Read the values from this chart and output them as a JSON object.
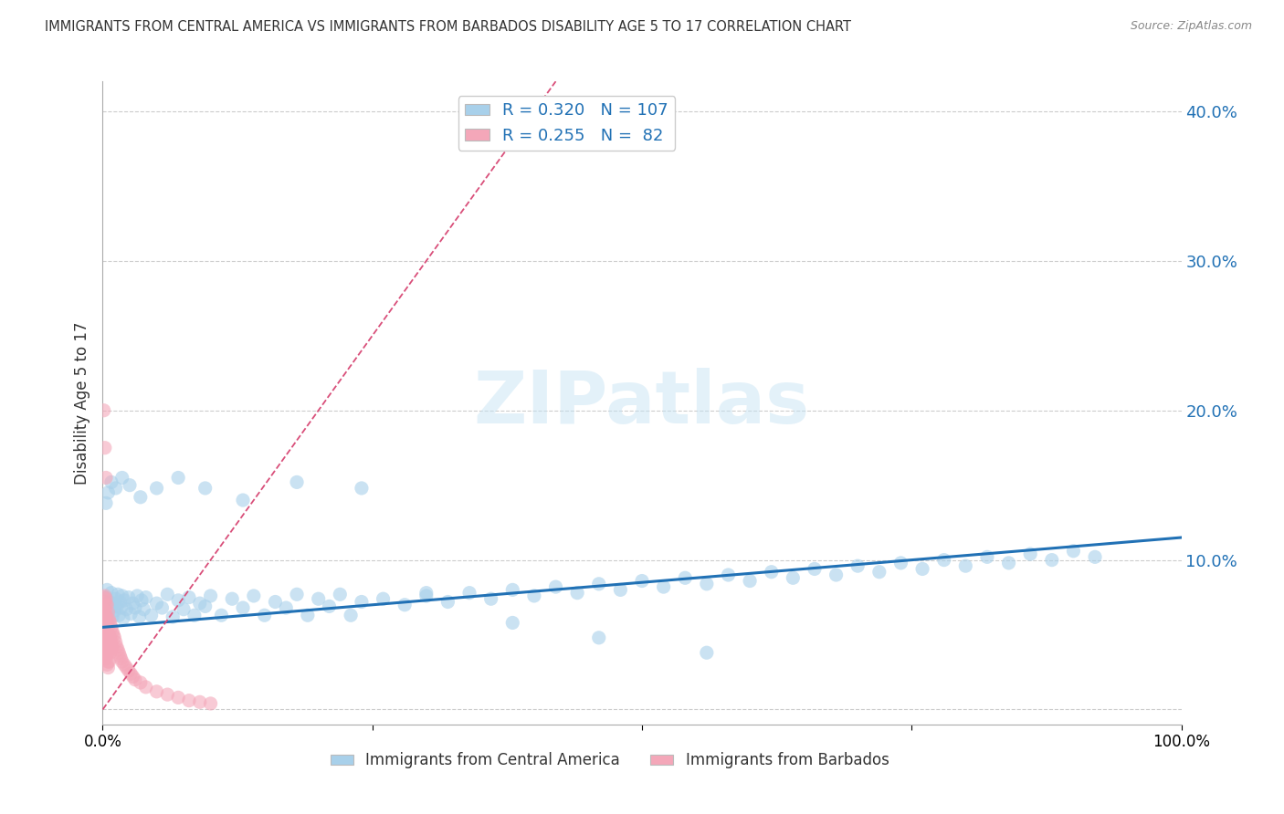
{
  "title": "IMMIGRANTS FROM CENTRAL AMERICA VS IMMIGRANTS FROM BARBADOS DISABILITY AGE 5 TO 17 CORRELATION CHART",
  "source": "Source: ZipAtlas.com",
  "ylabel_label": "Disability Age 5 to 17",
  "xlim": [
    0.0,
    1.0
  ],
  "ylim": [
    -0.01,
    0.42
  ],
  "ytick_vals": [
    0.0,
    0.1,
    0.2,
    0.3,
    0.4
  ],
  "ytick_labels": [
    "",
    "10.0%",
    "20.0%",
    "30.0%",
    "40.0%"
  ],
  "xtick_vals": [
    0.0,
    0.25,
    0.5,
    0.75,
    1.0
  ],
  "xtick_labels": [
    "0.0%",
    "",
    "",
    "",
    "100.0%"
  ],
  "legend_entry1": "R = 0.320   N = 107",
  "legend_entry2": "R = 0.255   N =  82",
  "watermark": "ZIPatlas",
  "blue_color": "#a8d0ea",
  "blue_color_dark": "#2171b5",
  "pink_color": "#f4a7b9",
  "pink_color_dark": "#d94f7a",
  "blue_trend_x": [
    0.0,
    1.0
  ],
  "blue_trend_y": [
    0.055,
    0.115
  ],
  "pink_trend_x": [
    0.0,
    0.42
  ],
  "pink_trend_y": [
    0.0,
    0.42
  ],
  "grid_color": "#cccccc",
  "background_color": "#ffffff",
  "blue_scatter_x": [
    0.001,
    0.002,
    0.003,
    0.004,
    0.005,
    0.006,
    0.007,
    0.008,
    0.009,
    0.01,
    0.011,
    0.012,
    0.013,
    0.014,
    0.015,
    0.016,
    0.017,
    0.018,
    0.019,
    0.02,
    0.022,
    0.024,
    0.026,
    0.028,
    0.03,
    0.032,
    0.034,
    0.036,
    0.038,
    0.04,
    0.045,
    0.05,
    0.055,
    0.06,
    0.065,
    0.07,
    0.075,
    0.08,
    0.085,
    0.09,
    0.095,
    0.1,
    0.11,
    0.12,
    0.13,
    0.14,
    0.15,
    0.16,
    0.17,
    0.18,
    0.19,
    0.2,
    0.21,
    0.22,
    0.23,
    0.24,
    0.26,
    0.28,
    0.3,
    0.32,
    0.34,
    0.36,
    0.38,
    0.4,
    0.42,
    0.44,
    0.46,
    0.48,
    0.5,
    0.52,
    0.54,
    0.56,
    0.58,
    0.6,
    0.62,
    0.64,
    0.66,
    0.68,
    0.7,
    0.72,
    0.74,
    0.76,
    0.78,
    0.8,
    0.82,
    0.84,
    0.86,
    0.88,
    0.9,
    0.92,
    0.003,
    0.005,
    0.008,
    0.012,
    0.018,
    0.025,
    0.035,
    0.05,
    0.07,
    0.095,
    0.13,
    0.18,
    0.24,
    0.3,
    0.38,
    0.46,
    0.56
  ],
  "blue_scatter_y": [
    0.065,
    0.07,
    0.075,
    0.08,
    0.06,
    0.072,
    0.068,
    0.078,
    0.062,
    0.071,
    0.066,
    0.074,
    0.069,
    0.077,
    0.063,
    0.072,
    0.068,
    0.076,
    0.061,
    0.073,
    0.067,
    0.075,
    0.064,
    0.071,
    0.068,
    0.076,
    0.062,
    0.073,
    0.067,
    0.075,
    0.063,
    0.071,
    0.068,
    0.077,
    0.062,
    0.073,
    0.067,
    0.075,
    0.063,
    0.071,
    0.069,
    0.076,
    0.063,
    0.074,
    0.068,
    0.076,
    0.063,
    0.072,
    0.068,
    0.077,
    0.063,
    0.074,
    0.069,
    0.077,
    0.063,
    0.072,
    0.074,
    0.07,
    0.076,
    0.072,
    0.078,
    0.074,
    0.08,
    0.076,
    0.082,
    0.078,
    0.084,
    0.08,
    0.086,
    0.082,
    0.088,
    0.084,
    0.09,
    0.086,
    0.092,
    0.088,
    0.094,
    0.09,
    0.096,
    0.092,
    0.098,
    0.094,
    0.1,
    0.096,
    0.102,
    0.098,
    0.104,
    0.1,
    0.106,
    0.102,
    0.138,
    0.145,
    0.152,
    0.148,
    0.155,
    0.15,
    0.142,
    0.148,
    0.155,
    0.148,
    0.14,
    0.152,
    0.148,
    0.078,
    0.058,
    0.048,
    0.038
  ],
  "pink_scatter_x": [
    0.0,
    0.0,
    0.001,
    0.001,
    0.001,
    0.001,
    0.001,
    0.001,
    0.001,
    0.001,
    0.001,
    0.002,
    0.002,
    0.002,
    0.002,
    0.002,
    0.002,
    0.002,
    0.002,
    0.002,
    0.002,
    0.002,
    0.003,
    0.003,
    0.003,
    0.003,
    0.003,
    0.003,
    0.003,
    0.003,
    0.003,
    0.003,
    0.004,
    0.004,
    0.004,
    0.004,
    0.004,
    0.004,
    0.004,
    0.005,
    0.005,
    0.005,
    0.005,
    0.005,
    0.005,
    0.006,
    0.006,
    0.006,
    0.006,
    0.007,
    0.007,
    0.007,
    0.008,
    0.008,
    0.009,
    0.009,
    0.01,
    0.011,
    0.012,
    0.013,
    0.014,
    0.015,
    0.016,
    0.017,
    0.018,
    0.02,
    0.022,
    0.024,
    0.026,
    0.028,
    0.03,
    0.035,
    0.04,
    0.05,
    0.06,
    0.07,
    0.08,
    0.09,
    0.1,
    0.001,
    0.002,
    0.003
  ],
  "pink_scatter_y": [
    0.06,
    0.05,
    0.045,
    0.055,
    0.065,
    0.075,
    0.058,
    0.048,
    0.04,
    0.068,
    0.035,
    0.042,
    0.052,
    0.062,
    0.072,
    0.046,
    0.056,
    0.038,
    0.066,
    0.076,
    0.05,
    0.044,
    0.054,
    0.064,
    0.074,
    0.048,
    0.058,
    0.042,
    0.036,
    0.07,
    0.034,
    0.06,
    0.05,
    0.04,
    0.07,
    0.06,
    0.05,
    0.04,
    0.03,
    0.065,
    0.055,
    0.045,
    0.038,
    0.032,
    0.028,
    0.06,
    0.05,
    0.04,
    0.032,
    0.058,
    0.048,
    0.038,
    0.055,
    0.045,
    0.052,
    0.042,
    0.05,
    0.048,
    0.045,
    0.042,
    0.04,
    0.038,
    0.036,
    0.034,
    0.032,
    0.03,
    0.028,
    0.026,
    0.024,
    0.022,
    0.02,
    0.018,
    0.015,
    0.012,
    0.01,
    0.008,
    0.006,
    0.005,
    0.004,
    0.2,
    0.175,
    0.155
  ]
}
